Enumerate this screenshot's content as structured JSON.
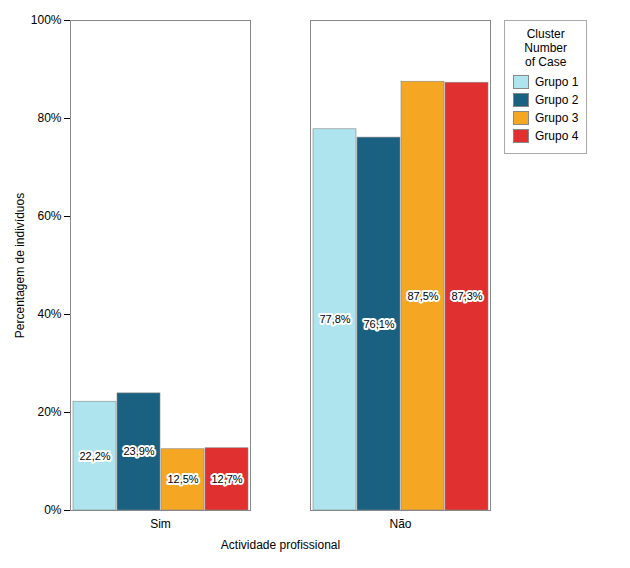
{
  "chart_data": {
    "type": "bar",
    "categories": [
      "Sim",
      "Não"
    ],
    "series": [
      {
        "name": "Grupo 1",
        "color": "#aee4ee",
        "values": [
          22.2,
          77.8
        ],
        "value_labels": [
          "22,2%",
          "77,8%"
        ]
      },
      {
        "name": "Grupo 2",
        "color": "#1a6080",
        "values": [
          23.9,
          76.1
        ],
        "value_labels": [
          "23,9%",
          "76,1%"
        ]
      },
      {
        "name": "Grupo 3",
        "color": "#f5a623",
        "values": [
          12.5,
          87.5
        ],
        "value_labels": [
          "12,5%",
          "87,5%"
        ]
      },
      {
        "name": "Grupo 4",
        "color": "#e03030",
        "values": [
          12.7,
          87.3
        ],
        "value_labels": [
          "12,7%",
          "87,3%"
        ]
      }
    ],
    "xlabel": "Actividade profissional",
    "ylabel": "Percentagem de indivíduos",
    "legend_title": "Cluster\nNumber\nof Case",
    "ylim": [
      0,
      100
    ],
    "yticks": [
      {
        "value": 0,
        "label": "0%"
      },
      {
        "value": 20,
        "label": "20%"
      },
      {
        "value": 40,
        "label": "40%"
      },
      {
        "value": 60,
        "label": "60%"
      },
      {
        "value": 80,
        "label": "80%"
      },
      {
        "value": 100,
        "label": "100%"
      }
    ],
    "grid": false,
    "legend": "right",
    "data_labels": true
  }
}
